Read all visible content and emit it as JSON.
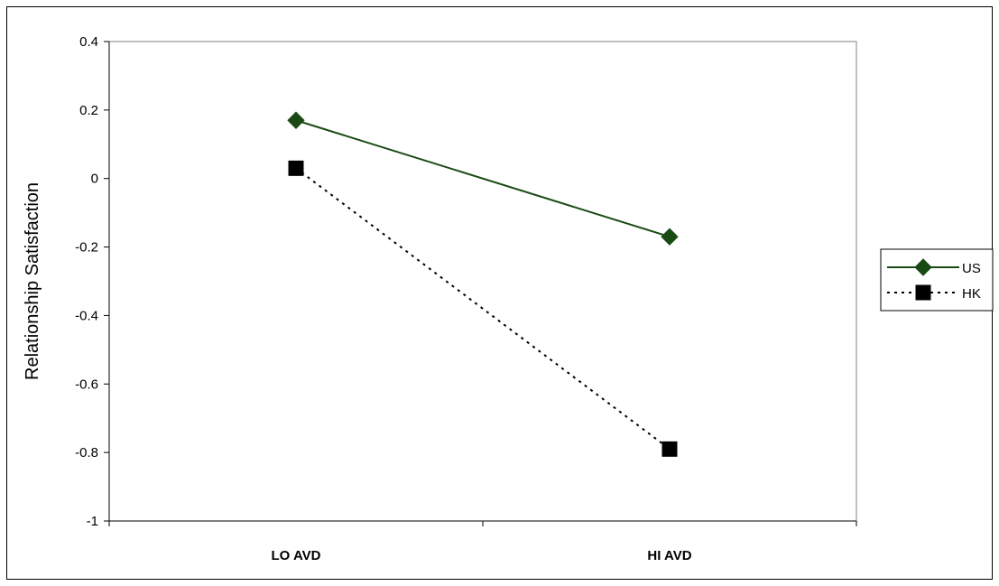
{
  "chart_data": {
    "type": "line",
    "categories": [
      "LO AVD",
      "HI AVD"
    ],
    "ylabel": "Relationship Satisfaction",
    "xlabel": "",
    "ylim": [
      -1,
      0.4
    ],
    "yticks": [
      "0.4",
      "0.2",
      "0",
      "-0.2",
      "-0.4",
      "-0.6",
      "-0.8",
      "-1"
    ],
    "ytick_values": [
      0.4,
      0.2,
      0,
      -0.2,
      -0.4,
      -0.6,
      -0.8,
      -1
    ],
    "grid": false,
    "legend_position": "right",
    "series": [
      {
        "name": "US",
        "values": [
          0.17,
          -0.17
        ],
        "color": "#1a4a14",
        "marker": "diamond",
        "line": "solid"
      },
      {
        "name": "HK",
        "values": [
          0.03,
          -0.79
        ],
        "color": "#000000",
        "marker": "square",
        "line": "dotted"
      }
    ]
  }
}
